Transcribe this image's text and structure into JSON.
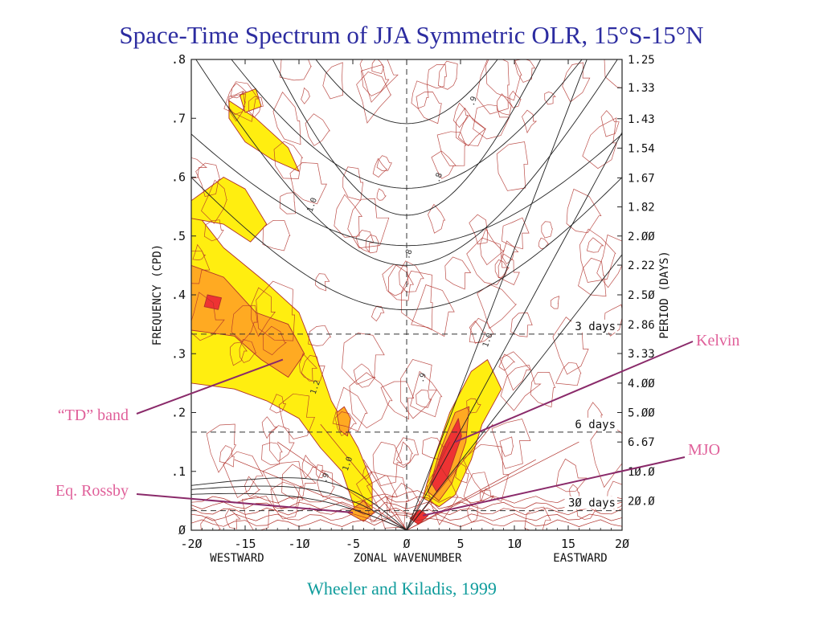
{
  "page": {
    "title": "Space-Time Spectrum of JJA Symmetric OLR, 15°S-15°N",
    "credit": "Wheeler and Kiladis, 1999"
  },
  "colors": {
    "title": "#2c2ca0",
    "annotation": "#e0609a",
    "leader": "#8a2a6a",
    "contour": "#b0302a",
    "credit": "#0f9c9c",
    "fill_low": "#ffee10",
    "fill_mid": "#ffaa22",
    "fill_high": "#ee3333",
    "fill_peak": "#d81818"
  },
  "chart_data": {
    "type": "heatmap",
    "xlabel": "ZONAL WAVENUMBER",
    "xlabel_left": "WESTWARD",
    "xlabel_right": "EASTWARD",
    "ylabel": "FREQUENCY (CPD)",
    "ylabel_right": "PERIOD (DAYS)",
    "xlim": [
      -20,
      20
    ],
    "ylim": [
      0,
      0.8
    ],
    "x_ticks": [
      -20,
      -15,
      -10,
      -5,
      0,
      5,
      10,
      15,
      20
    ],
    "x_tick_labels": [
      "-2Ø",
      "-15",
      "-1Ø",
      "-5",
      "Ø",
      "5",
      "1Ø",
      "15",
      "2Ø"
    ],
    "y_ticks": [
      0,
      0.1,
      0.2,
      0.3,
      0.4,
      0.5,
      0.6,
      0.7,
      0.8
    ],
    "y_tick_labels": [
      "Ø",
      ".1",
      ".2",
      ".3",
      ".4",
      ".5",
      ".6",
      ".7",
      ".8"
    ],
    "period_ticks": [
      1.25,
      1.33,
      1.43,
      1.54,
      1.67,
      1.82,
      2.0,
      2.22,
      2.5,
      2.86,
      3.33,
      4.0,
      5.0,
      6.67,
      10.0,
      20.0
    ],
    "period_tick_labels": [
      "1.25",
      "1.33",
      "1.43",
      "1.54",
      "1.67",
      "1.82",
      "2.ØØ",
      "2.22",
      "2.5Ø",
      "2.86",
      "3.33",
      "4.ØØ",
      "5.ØØ",
      "6.67",
      "1Ø.Ø",
      "2Ø.Ø"
    ],
    "reference_lines": [
      {
        "label": "3 days",
        "frequency": 0.3333
      },
      {
        "label": "6 days",
        "frequency": 0.1667
      },
      {
        "label": "3Ø days",
        "frequency": 0.0333
      }
    ],
    "annotations": [
      {
        "label": "Kelvin",
        "target_wavenumber": 4.5,
        "target_frequency": 0.15
      },
      {
        "label": "“TD” band",
        "target_wavenumber": -11.5,
        "target_frequency": 0.29
      },
      {
        "label": "MJO",
        "target_wavenumber": 1.5,
        "target_frequency": 0.025
      },
      {
        "label": "Eq. Rossby",
        "target_wavenumber": -5,
        "target_frequency": 0.03
      }
    ],
    "contour_labels": [
      {
        "text": ".9",
        "x": -7.5,
        "y": 0.08
      },
      {
        "text": "1.0",
        "x": -5.5,
        "y": 0.1
      },
      {
        "text": "1.2",
        "x": -8.5,
        "y": 0.23
      },
      {
        "text": ".9",
        "x": 1.5,
        "y": 0.25
      },
      {
        "text": "1.0",
        "x": 7.5,
        "y": 0.31
      },
      {
        "text": ".8",
        "x": 0.2,
        "y": 0.46
      },
      {
        "text": "1.0",
        "x": -8.8,
        "y": 0.54
      },
      {
        "text": ".8",
        "x": 3,
        "y": 0.59
      },
      {
        "text": ".9",
        "x": 6.2,
        "y": 0.72
      }
    ],
    "regions": [
      {
        "name": "TD band / westward",
        "level": 1,
        "points": [
          [
            -20,
            0.55
          ],
          [
            -17,
            0.48
          ],
          [
            -13,
            0.42
          ],
          [
            -10,
            0.37
          ],
          [
            -8.5,
            0.3
          ],
          [
            -7,
            0.22
          ],
          [
            -4.5,
            0.14
          ],
          [
            -3.2,
            0.08
          ],
          [
            -3.2,
            0.03
          ],
          [
            -4.5,
            0.02
          ],
          [
            -6,
            0.1
          ],
          [
            -8,
            0.14
          ],
          [
            -10,
            0.19
          ],
          [
            -13,
            0.22
          ],
          [
            -16,
            0.24
          ],
          [
            -20,
            0.25
          ]
        ]
      },
      {
        "name": "TD band upper",
        "level": 1,
        "points": [
          [
            -20,
            0.56
          ],
          [
            -17,
            0.6
          ],
          [
            -15,
            0.58
          ],
          [
            -13,
            0.52
          ],
          [
            -14.5,
            0.49
          ],
          [
            -17,
            0.52
          ],
          [
            -20,
            0.53
          ]
        ]
      },
      {
        "name": "top left patch",
        "level": 1,
        "points": [
          [
            -16.5,
            0.73
          ],
          [
            -14,
            0.7
          ],
          [
            -11,
            0.65
          ],
          [
            -10,
            0.61
          ],
          [
            -12.5,
            0.63
          ],
          [
            -15,
            0.66
          ],
          [
            -16.5,
            0.7
          ]
        ]
      },
      {
        "name": "top left patch 2",
        "level": 1,
        "points": [
          [
            -15.5,
            0.74
          ],
          [
            -14,
            0.75
          ],
          [
            -13.5,
            0.72
          ],
          [
            -15,
            0.71
          ]
        ]
      },
      {
        "name": "TD mid core",
        "level": 2,
        "points": [
          [
            -20,
            0.45
          ],
          [
            -17,
            0.43
          ],
          [
            -14,
            0.37
          ],
          [
            -11,
            0.35
          ],
          [
            -9.5,
            0.3
          ],
          [
            -11,
            0.26
          ],
          [
            -13.5,
            0.29
          ],
          [
            -16,
            0.33
          ],
          [
            -20,
            0.34
          ]
        ]
      },
      {
        "name": "TD peak",
        "level": 3,
        "points": [
          [
            -18.5,
            0.4
          ],
          [
            -17.2,
            0.395
          ],
          [
            -17.5,
            0.375
          ],
          [
            -18.8,
            0.38
          ]
        ]
      },
      {
        "name": "TD lower core",
        "level": 2,
        "points": [
          [
            -6.5,
            0.2
          ],
          [
            -5.8,
            0.21
          ],
          [
            -5.2,
            0.19
          ],
          [
            -5.5,
            0.16
          ],
          [
            -6.2,
            0.17
          ]
        ]
      },
      {
        "name": "Kelvin outer",
        "level": 1,
        "points": [
          [
            1.5,
            0.055
          ],
          [
            2.5,
            0.12
          ],
          [
            4,
            0.2
          ],
          [
            6,
            0.27
          ],
          [
            7.5,
            0.29
          ],
          [
            8.8,
            0.24
          ],
          [
            7,
            0.18
          ],
          [
            6,
            0.12
          ],
          [
            4.5,
            0.06
          ],
          [
            3,
            0.04
          ]
        ]
      },
      {
        "name": "Kelvin mid",
        "level": 2,
        "points": [
          [
            2,
            0.065
          ],
          [
            3,
            0.13
          ],
          [
            4.5,
            0.2
          ],
          [
            5.8,
            0.21
          ],
          [
            5.5,
            0.15
          ],
          [
            4.2,
            0.08
          ],
          [
            3,
            0.05
          ]
        ]
      },
      {
        "name": "Kelvin core",
        "level": 3,
        "points": [
          [
            2.3,
            0.08
          ],
          [
            3.4,
            0.14
          ],
          [
            4.8,
            0.19
          ],
          [
            5.1,
            0.16
          ],
          [
            3.8,
            0.09
          ],
          [
            2.8,
            0.065
          ]
        ]
      },
      {
        "name": "Eq Rossby blob",
        "level": 2,
        "points": [
          [
            -5.5,
            0.03
          ],
          [
            -4,
            0.05
          ],
          [
            -3,
            0.03
          ],
          [
            -4,
            0.015
          ]
        ]
      },
      {
        "name": "MJO blob",
        "level": 3,
        "points": [
          [
            0.3,
            0.02
          ],
          [
            1.2,
            0.035
          ],
          [
            2,
            0.025
          ],
          [
            1.1,
            0.01
          ]
        ]
      }
    ]
  }
}
